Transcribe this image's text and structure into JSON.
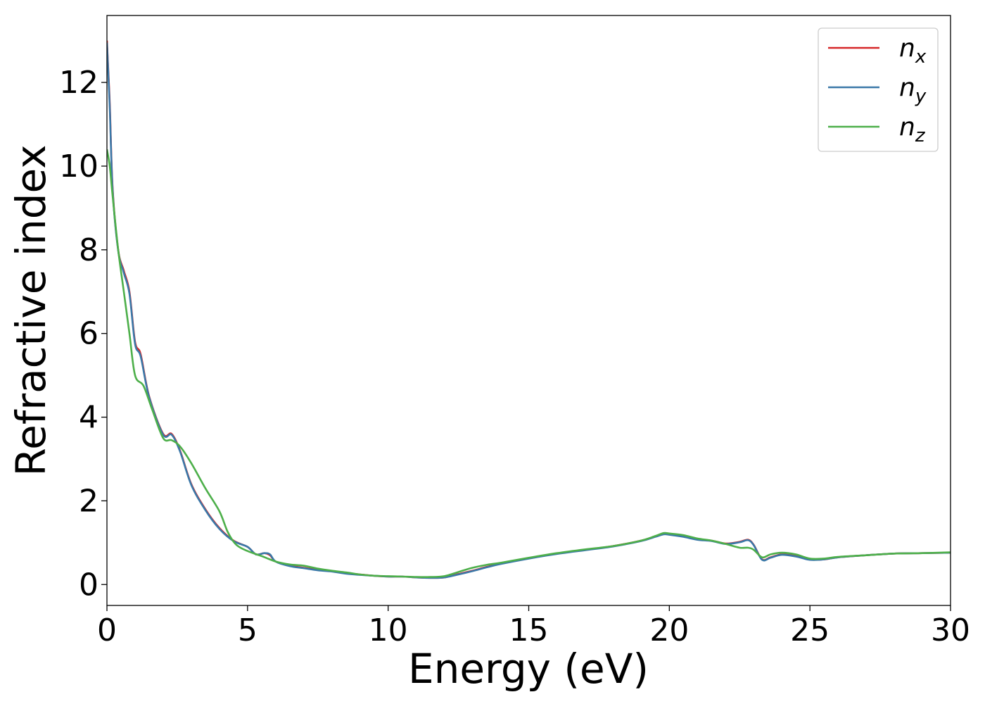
{
  "chart_data": {
    "type": "line",
    "xlabel": "Energy (eV)",
    "ylabel": "Refractive index",
    "xlim": [
      0,
      30
    ],
    "ylim": [
      -0.5,
      13.6
    ],
    "xticks": [
      0,
      5,
      10,
      15,
      20,
      25,
      30
    ],
    "yticks": [
      0,
      2,
      4,
      6,
      8,
      10,
      12
    ],
    "grid": false,
    "legend_position": "top-right",
    "series": [
      {
        "name": "x",
        "color": "#d62728",
        "points": [
          [
            0.0,
            13.0
          ],
          [
            0.1,
            11.5
          ],
          [
            0.2,
            9.5
          ],
          [
            0.4,
            8.0
          ],
          [
            0.6,
            7.5
          ],
          [
            0.8,
            7.0
          ],
          [
            1.0,
            5.8
          ],
          [
            1.2,
            5.5
          ],
          [
            1.5,
            4.5
          ],
          [
            2.0,
            3.6
          ],
          [
            2.3,
            3.6
          ],
          [
            2.6,
            3.2
          ],
          [
            3.0,
            2.4
          ],
          [
            3.5,
            1.8
          ],
          [
            4.0,
            1.35
          ],
          [
            4.5,
            1.05
          ],
          [
            5.0,
            0.9
          ],
          [
            5.3,
            0.72
          ],
          [
            5.6,
            0.75
          ],
          [
            5.8,
            0.7
          ],
          [
            6.0,
            0.55
          ],
          [
            6.5,
            0.45
          ],
          [
            7.0,
            0.4
          ],
          [
            7.5,
            0.35
          ],
          [
            8.0,
            0.32
          ],
          [
            8.5,
            0.27
          ],
          [
            9.0,
            0.24
          ],
          [
            9.5,
            0.21
          ],
          [
            10.0,
            0.19
          ],
          [
            10.5,
            0.19
          ],
          [
            11.0,
            0.17
          ],
          [
            11.5,
            0.16
          ],
          [
            12.0,
            0.17
          ],
          [
            12.5,
            0.25
          ],
          [
            13.0,
            0.33
          ],
          [
            13.5,
            0.42
          ],
          [
            14.0,
            0.5
          ],
          [
            15.0,
            0.63
          ],
          [
            16.0,
            0.74
          ],
          [
            17.0,
            0.83
          ],
          [
            18.0,
            0.92
          ],
          [
            19.0,
            1.05
          ],
          [
            19.5,
            1.15
          ],
          [
            19.8,
            1.21
          ],
          [
            20.0,
            1.2
          ],
          [
            20.5,
            1.15
          ],
          [
            21.0,
            1.08
          ],
          [
            21.5,
            1.05
          ],
          [
            22.0,
            0.98
          ],
          [
            22.5,
            1.02
          ],
          [
            22.8,
            1.07
          ],
          [
            23.0,
            0.95
          ],
          [
            23.3,
            0.6
          ],
          [
            23.6,
            0.65
          ],
          [
            24.0,
            0.72
          ],
          [
            24.5,
            0.68
          ],
          [
            25.0,
            0.6
          ],
          [
            25.5,
            0.6
          ],
          [
            26.0,
            0.65
          ],
          [
            27.0,
            0.7
          ],
          [
            28.0,
            0.74
          ],
          [
            29.0,
            0.75
          ],
          [
            30.0,
            0.76
          ]
        ]
      },
      {
        "name": "y",
        "color": "#3a78a8",
        "points": [
          [
            0.0,
            12.95
          ],
          [
            0.1,
            11.4
          ],
          [
            0.2,
            9.45
          ],
          [
            0.4,
            7.98
          ],
          [
            0.6,
            7.45
          ],
          [
            0.8,
            6.95
          ],
          [
            1.0,
            5.75
          ],
          [
            1.2,
            5.45
          ],
          [
            1.5,
            4.48
          ],
          [
            2.0,
            3.58
          ],
          [
            2.3,
            3.58
          ],
          [
            2.6,
            3.18
          ],
          [
            3.0,
            2.38
          ],
          [
            3.5,
            1.78
          ],
          [
            4.0,
            1.33
          ],
          [
            4.5,
            1.04
          ],
          [
            5.0,
            0.9
          ],
          [
            5.3,
            0.72
          ],
          [
            5.6,
            0.75
          ],
          [
            5.8,
            0.72
          ],
          [
            6.0,
            0.55
          ],
          [
            6.5,
            0.44
          ],
          [
            7.0,
            0.39
          ],
          [
            7.5,
            0.34
          ],
          [
            8.0,
            0.31
          ],
          [
            8.5,
            0.26
          ],
          [
            9.0,
            0.23
          ],
          [
            9.5,
            0.21
          ],
          [
            10.0,
            0.19
          ],
          [
            10.5,
            0.19
          ],
          [
            11.0,
            0.17
          ],
          [
            11.5,
            0.16
          ],
          [
            12.0,
            0.17
          ],
          [
            12.5,
            0.24
          ],
          [
            13.0,
            0.32
          ],
          [
            13.5,
            0.41
          ],
          [
            14.0,
            0.49
          ],
          [
            15.0,
            0.62
          ],
          [
            16.0,
            0.73
          ],
          [
            17.0,
            0.82
          ],
          [
            18.0,
            0.91
          ],
          [
            19.0,
            1.04
          ],
          [
            19.5,
            1.14
          ],
          [
            19.8,
            1.2
          ],
          [
            20.0,
            1.19
          ],
          [
            20.5,
            1.14
          ],
          [
            21.0,
            1.07
          ],
          [
            21.5,
            1.04
          ],
          [
            22.0,
            0.97
          ],
          [
            22.5,
            1.01
          ],
          [
            22.8,
            1.06
          ],
          [
            23.0,
            0.94
          ],
          [
            23.3,
            0.59
          ],
          [
            23.6,
            0.64
          ],
          [
            24.0,
            0.71
          ],
          [
            24.5,
            0.67
          ],
          [
            25.0,
            0.59
          ],
          [
            25.5,
            0.6
          ],
          [
            26.0,
            0.65
          ],
          [
            27.0,
            0.7
          ],
          [
            28.0,
            0.74
          ],
          [
            29.0,
            0.75
          ],
          [
            30.0,
            0.76
          ]
        ]
      },
      {
        "name": "z",
        "color": "#4daf4a",
        "points": [
          [
            0.0,
            10.4
          ],
          [
            0.1,
            10.0
          ],
          [
            0.2,
            9.3
          ],
          [
            0.4,
            8.0
          ],
          [
            0.6,
            7.0
          ],
          [
            0.8,
            6.0
          ],
          [
            1.0,
            5.0
          ],
          [
            1.3,
            4.75
          ],
          [
            1.6,
            4.2
          ],
          [
            2.0,
            3.5
          ],
          [
            2.3,
            3.45
          ],
          [
            2.6,
            3.3
          ],
          [
            3.0,
            2.9
          ],
          [
            3.5,
            2.3
          ],
          [
            4.0,
            1.75
          ],
          [
            4.3,
            1.25
          ],
          [
            4.6,
            0.95
          ],
          [
            5.0,
            0.8
          ],
          [
            5.5,
            0.68
          ],
          [
            6.0,
            0.55
          ],
          [
            6.5,
            0.48
          ],
          [
            7.0,
            0.45
          ],
          [
            7.5,
            0.38
          ],
          [
            8.0,
            0.33
          ],
          [
            8.5,
            0.29
          ],
          [
            9.0,
            0.24
          ],
          [
            9.5,
            0.21
          ],
          [
            10.0,
            0.2
          ],
          [
            10.5,
            0.19
          ],
          [
            11.0,
            0.18
          ],
          [
            11.5,
            0.18
          ],
          [
            12.0,
            0.2
          ],
          [
            12.5,
            0.3
          ],
          [
            13.0,
            0.4
          ],
          [
            13.5,
            0.47
          ],
          [
            14.0,
            0.52
          ],
          [
            15.0,
            0.64
          ],
          [
            16.0,
            0.75
          ],
          [
            17.0,
            0.84
          ],
          [
            18.0,
            0.92
          ],
          [
            19.0,
            1.05
          ],
          [
            19.5,
            1.16
          ],
          [
            19.8,
            1.23
          ],
          [
            20.0,
            1.22
          ],
          [
            20.5,
            1.18
          ],
          [
            21.0,
            1.1
          ],
          [
            21.5,
            1.05
          ],
          [
            22.0,
            0.97
          ],
          [
            22.5,
            0.88
          ],
          [
            22.8,
            0.88
          ],
          [
            23.0,
            0.83
          ],
          [
            23.3,
            0.65
          ],
          [
            23.6,
            0.72
          ],
          [
            24.0,
            0.76
          ],
          [
            24.5,
            0.72
          ],
          [
            25.0,
            0.62
          ],
          [
            25.5,
            0.62
          ],
          [
            26.0,
            0.66
          ],
          [
            27.0,
            0.7
          ],
          [
            28.0,
            0.74
          ],
          [
            29.0,
            0.75
          ],
          [
            30.0,
            0.77
          ]
        ]
      }
    ]
  }
}
